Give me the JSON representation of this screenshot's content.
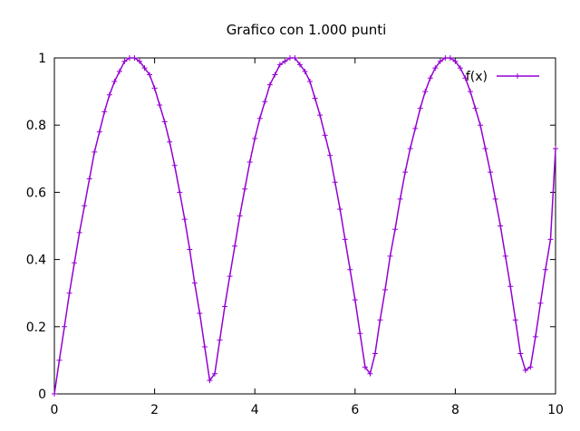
{
  "chart_data": {
    "type": "line",
    "title": "Grafico con 1.000 punti",
    "xlabel": "",
    "ylabel": "",
    "xlim": [
      0,
      10
    ],
    "ylim": [
      0,
      1
    ],
    "x_ticks": [
      "0",
      "2",
      "4",
      "6",
      "8",
      "10"
    ],
    "y_ticks": [
      "0",
      "0.2",
      "0.4",
      "0.6",
      "0.8",
      "1"
    ],
    "grid": false,
    "legend_position": "top-right",
    "series": [
      {
        "name": "f(x)",
        "color": "#9400d3",
        "marker": "plus",
        "points": [
          [
            0.0,
            0.0
          ],
          [
            0.1,
            0.1
          ],
          [
            0.2,
            0.2
          ],
          [
            0.3,
            0.3
          ],
          [
            0.4,
            0.39
          ],
          [
            0.5,
            0.48
          ],
          [
            0.6,
            0.56
          ],
          [
            0.7,
            0.64
          ],
          [
            0.8,
            0.72
          ],
          [
            0.9,
            0.78
          ],
          [
            1.0,
            0.84
          ],
          [
            1.1,
            0.89
          ],
          [
            1.2,
            0.93
          ],
          [
            1.3,
            0.96
          ],
          [
            1.4,
            0.99
          ],
          [
            1.5,
            1.0
          ],
          [
            1.6,
            1.0
          ],
          [
            1.7,
            0.99
          ],
          [
            1.8,
            0.97
          ],
          [
            1.9,
            0.95
          ],
          [
            2.0,
            0.91
          ],
          [
            2.1,
            0.86
          ],
          [
            2.2,
            0.81
          ],
          [
            2.3,
            0.75
          ],
          [
            2.4,
            0.68
          ],
          [
            2.5,
            0.6
          ],
          [
            2.6,
            0.52
          ],
          [
            2.7,
            0.43
          ],
          [
            2.8,
            0.33
          ],
          [
            2.9,
            0.24
          ],
          [
            3.0,
            0.14
          ],
          [
            3.1,
            0.04
          ],
          [
            3.2,
            0.06
          ],
          [
            3.3,
            0.16
          ],
          [
            3.4,
            0.26
          ],
          [
            3.5,
            0.35
          ],
          [
            3.6,
            0.44
          ],
          [
            3.7,
            0.53
          ],
          [
            3.8,
            0.61
          ],
          [
            3.9,
            0.69
          ],
          [
            4.0,
            0.76
          ],
          [
            4.1,
            0.82
          ],
          [
            4.2,
            0.87
          ],
          [
            4.3,
            0.92
          ],
          [
            4.4,
            0.95
          ],
          [
            4.5,
            0.98
          ],
          [
            4.6,
            0.99
          ],
          [
            4.7,
            1.0
          ],
          [
            4.8,
            1.0
          ],
          [
            4.9,
            0.98
          ],
          [
            5.0,
            0.96
          ],
          [
            5.1,
            0.93
          ],
          [
            5.2,
            0.88
          ],
          [
            5.3,
            0.83
          ],
          [
            5.4,
            0.77
          ],
          [
            5.5,
            0.71
          ],
          [
            5.6,
            0.63
          ],
          [
            5.7,
            0.55
          ],
          [
            5.8,
            0.46
          ],
          [
            5.9,
            0.37
          ],
          [
            6.0,
            0.28
          ],
          [
            6.1,
            0.18
          ],
          [
            6.2,
            0.08
          ],
          [
            6.3,
            0.06
          ],
          [
            6.4,
            0.12
          ],
          [
            6.5,
            0.22
          ],
          [
            6.6,
            0.31
          ],
          [
            6.7,
            0.41
          ],
          [
            6.8,
            0.49
          ],
          [
            6.9,
            0.58
          ],
          [
            7.0,
            0.66
          ],
          [
            7.1,
            0.73
          ],
          [
            7.2,
            0.79
          ],
          [
            7.3,
            0.85
          ],
          [
            7.4,
            0.9
          ],
          [
            7.5,
            0.94
          ],
          [
            7.6,
            0.97
          ],
          [
            7.7,
            0.99
          ],
          [
            7.8,
            1.0
          ],
          [
            7.9,
            1.0
          ],
          [
            8.0,
            0.99
          ],
          [
            8.1,
            0.97
          ],
          [
            8.2,
            0.94
          ],
          [
            8.3,
            0.9
          ],
          [
            8.4,
            0.85
          ],
          [
            8.5,
            0.8
          ],
          [
            8.6,
            0.73
          ],
          [
            8.7,
            0.66
          ],
          [
            8.8,
            0.58
          ],
          [
            8.9,
            0.5
          ],
          [
            9.0,
            0.41
          ],
          [
            9.1,
            0.32
          ],
          [
            9.2,
            0.22
          ],
          [
            9.3,
            0.12
          ],
          [
            9.4,
            0.07
          ],
          [
            9.5,
            0.08
          ],
          [
            9.6,
            0.17
          ],
          [
            9.7,
            0.27
          ],
          [
            9.8,
            0.37
          ],
          [
            9.9,
            0.46
          ],
          [
            10.0,
            0.73
          ]
        ]
      }
    ]
  }
}
